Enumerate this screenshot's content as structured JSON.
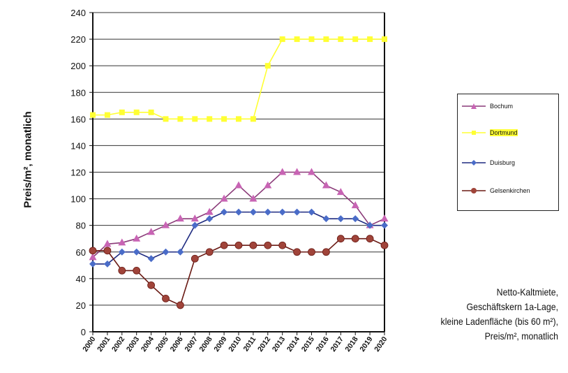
{
  "chart_data": {
    "type": "line",
    "title": "",
    "xlabel": "",
    "ylabel": "Preis/m², monatlich",
    "ylim": [
      0,
      240
    ],
    "yticks": [
      "0",
      "20",
      "40",
      "60",
      "80",
      "100",
      "120",
      "140",
      "160",
      "180",
      "200",
      "220",
      "240"
    ],
    "grid": true,
    "legend_position": "right",
    "x": [
      "2000",
      "2001",
      "2002",
      "2003",
      "2004",
      "2005",
      "2006",
      "2007",
      "2008",
      "2009",
      "2010",
      "2011",
      "2012",
      "2013",
      "2014",
      "2015",
      "2016",
      "2017",
      "2018",
      "2019",
      "2020"
    ],
    "series": [
      {
        "name": "Bochum",
        "color": "#c864b4",
        "marker": "triangle",
        "line": "#8a3a78",
        "values": [
          56,
          66,
          67,
          70,
          75,
          80,
          85,
          85,
          90,
          100,
          110,
          100,
          110,
          120,
          120,
          120,
          110,
          105,
          95,
          80,
          85
        ]
      },
      {
        "name": "Dortmund",
        "color": "#ffff33",
        "marker": "square",
        "line": "#ffff33",
        "values": [
          163,
          163,
          165,
          165,
          165,
          160,
          160,
          160,
          160,
          160,
          160,
          160,
          200,
          220,
          220,
          220,
          220,
          220,
          220,
          220,
          220
        ]
      },
      {
        "name": "Duisburg",
        "color": "#4a6cc8",
        "marker": "diamond",
        "line": "#1e2a80",
        "values": [
          51,
          51,
          60,
          60,
          55,
          60,
          60,
          80,
          85,
          90,
          90,
          90,
          90,
          90,
          90,
          90,
          85,
          85,
          85,
          80,
          80
        ]
      },
      {
        "name": "Gelsenkirchen",
        "color": "#a0443a",
        "marker": "circle",
        "line": "#6a1a14",
        "values": [
          61,
          61,
          46,
          46,
          35,
          25,
          20,
          55,
          60,
          65,
          65,
          65,
          65,
          65,
          60,
          60,
          60,
          70,
          70,
          70,
          65
        ]
      }
    ],
    "caption": [
      "Netto-Kaltmiete,",
      "Geschäftskern 1a-Lage,",
      "kleine Ladenfläche (bis 60 m²),",
      "Preis/m², monatlich"
    ]
  }
}
